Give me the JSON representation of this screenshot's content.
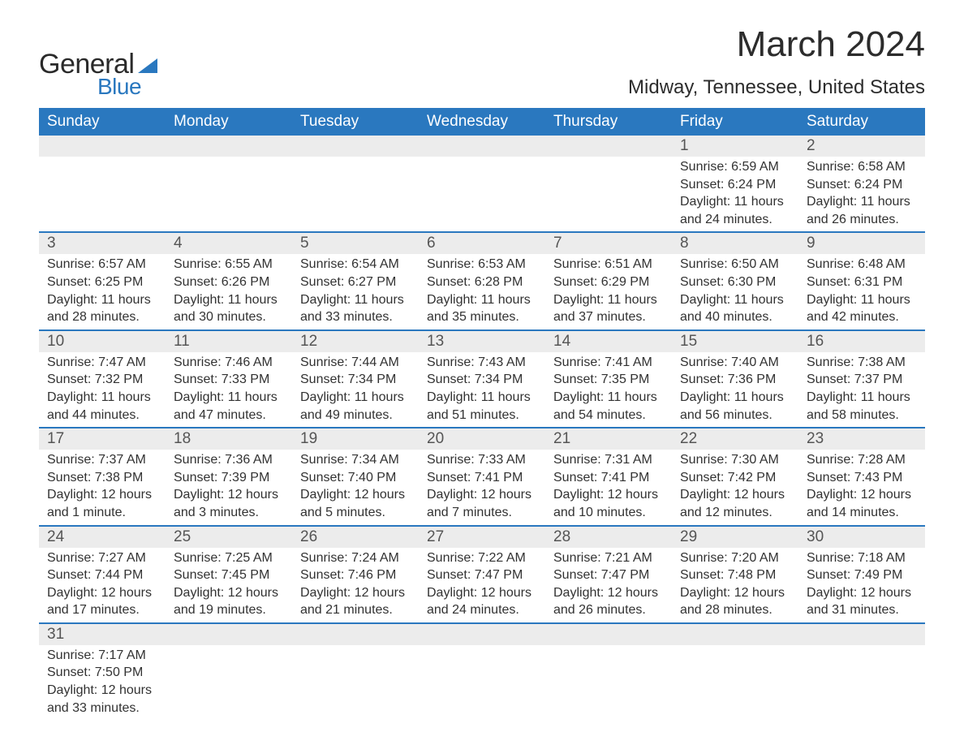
{
  "logo": {
    "text1": "General",
    "text2": "Blue",
    "text1_color": "#2a2a2a",
    "text2_color": "#2a78bf"
  },
  "title": "March 2024",
  "subtitle": "Midway, Tennessee, United States",
  "colors": {
    "header_bg": "#2a78bf",
    "header_text": "#ffffff",
    "daynum_bg": "#ececec",
    "daynum_text": "#555555",
    "body_text": "#323232",
    "row_border": "#2a78bf",
    "page_bg": "#ffffff"
  },
  "fonts": {
    "title_size": 44,
    "subtitle_size": 24,
    "header_size": 19,
    "daynum_size": 19,
    "detail_size": 16
  },
  "weekdays": [
    "Sunday",
    "Monday",
    "Tuesday",
    "Wednesday",
    "Thursday",
    "Friday",
    "Saturday"
  ],
  "weeks": [
    [
      null,
      null,
      null,
      null,
      null,
      {
        "n": "1",
        "sr": "Sunrise: 6:59 AM",
        "ss": "Sunset: 6:24 PM",
        "d1": "Daylight: 11 hours",
        "d2": "and 24 minutes."
      },
      {
        "n": "2",
        "sr": "Sunrise: 6:58 AM",
        "ss": "Sunset: 6:24 PM",
        "d1": "Daylight: 11 hours",
        "d2": "and 26 minutes."
      }
    ],
    [
      {
        "n": "3",
        "sr": "Sunrise: 6:57 AM",
        "ss": "Sunset: 6:25 PM",
        "d1": "Daylight: 11 hours",
        "d2": "and 28 minutes."
      },
      {
        "n": "4",
        "sr": "Sunrise: 6:55 AM",
        "ss": "Sunset: 6:26 PM",
        "d1": "Daylight: 11 hours",
        "d2": "and 30 minutes."
      },
      {
        "n": "5",
        "sr": "Sunrise: 6:54 AM",
        "ss": "Sunset: 6:27 PM",
        "d1": "Daylight: 11 hours",
        "d2": "and 33 minutes."
      },
      {
        "n": "6",
        "sr": "Sunrise: 6:53 AM",
        "ss": "Sunset: 6:28 PM",
        "d1": "Daylight: 11 hours",
        "d2": "and 35 minutes."
      },
      {
        "n": "7",
        "sr": "Sunrise: 6:51 AM",
        "ss": "Sunset: 6:29 PM",
        "d1": "Daylight: 11 hours",
        "d2": "and 37 minutes."
      },
      {
        "n": "8",
        "sr": "Sunrise: 6:50 AM",
        "ss": "Sunset: 6:30 PM",
        "d1": "Daylight: 11 hours",
        "d2": "and 40 minutes."
      },
      {
        "n": "9",
        "sr": "Sunrise: 6:48 AM",
        "ss": "Sunset: 6:31 PM",
        "d1": "Daylight: 11 hours",
        "d2": "and 42 minutes."
      }
    ],
    [
      {
        "n": "10",
        "sr": "Sunrise: 7:47 AM",
        "ss": "Sunset: 7:32 PM",
        "d1": "Daylight: 11 hours",
        "d2": "and 44 minutes."
      },
      {
        "n": "11",
        "sr": "Sunrise: 7:46 AM",
        "ss": "Sunset: 7:33 PM",
        "d1": "Daylight: 11 hours",
        "d2": "and 47 minutes."
      },
      {
        "n": "12",
        "sr": "Sunrise: 7:44 AM",
        "ss": "Sunset: 7:34 PM",
        "d1": "Daylight: 11 hours",
        "d2": "and 49 minutes."
      },
      {
        "n": "13",
        "sr": "Sunrise: 7:43 AM",
        "ss": "Sunset: 7:34 PM",
        "d1": "Daylight: 11 hours",
        "d2": "and 51 minutes."
      },
      {
        "n": "14",
        "sr": "Sunrise: 7:41 AM",
        "ss": "Sunset: 7:35 PM",
        "d1": "Daylight: 11 hours",
        "d2": "and 54 minutes."
      },
      {
        "n": "15",
        "sr": "Sunrise: 7:40 AM",
        "ss": "Sunset: 7:36 PM",
        "d1": "Daylight: 11 hours",
        "d2": "and 56 minutes."
      },
      {
        "n": "16",
        "sr": "Sunrise: 7:38 AM",
        "ss": "Sunset: 7:37 PM",
        "d1": "Daylight: 11 hours",
        "d2": "and 58 minutes."
      }
    ],
    [
      {
        "n": "17",
        "sr": "Sunrise: 7:37 AM",
        "ss": "Sunset: 7:38 PM",
        "d1": "Daylight: 12 hours",
        "d2": "and 1 minute."
      },
      {
        "n": "18",
        "sr": "Sunrise: 7:36 AM",
        "ss": "Sunset: 7:39 PM",
        "d1": "Daylight: 12 hours",
        "d2": "and 3 minutes."
      },
      {
        "n": "19",
        "sr": "Sunrise: 7:34 AM",
        "ss": "Sunset: 7:40 PM",
        "d1": "Daylight: 12 hours",
        "d2": "and 5 minutes."
      },
      {
        "n": "20",
        "sr": "Sunrise: 7:33 AM",
        "ss": "Sunset: 7:41 PM",
        "d1": "Daylight: 12 hours",
        "d2": "and 7 minutes."
      },
      {
        "n": "21",
        "sr": "Sunrise: 7:31 AM",
        "ss": "Sunset: 7:41 PM",
        "d1": "Daylight: 12 hours",
        "d2": "and 10 minutes."
      },
      {
        "n": "22",
        "sr": "Sunrise: 7:30 AM",
        "ss": "Sunset: 7:42 PM",
        "d1": "Daylight: 12 hours",
        "d2": "and 12 minutes."
      },
      {
        "n": "23",
        "sr": "Sunrise: 7:28 AM",
        "ss": "Sunset: 7:43 PM",
        "d1": "Daylight: 12 hours",
        "d2": "and 14 minutes."
      }
    ],
    [
      {
        "n": "24",
        "sr": "Sunrise: 7:27 AM",
        "ss": "Sunset: 7:44 PM",
        "d1": "Daylight: 12 hours",
        "d2": "and 17 minutes."
      },
      {
        "n": "25",
        "sr": "Sunrise: 7:25 AM",
        "ss": "Sunset: 7:45 PM",
        "d1": "Daylight: 12 hours",
        "d2": "and 19 minutes."
      },
      {
        "n": "26",
        "sr": "Sunrise: 7:24 AM",
        "ss": "Sunset: 7:46 PM",
        "d1": "Daylight: 12 hours",
        "d2": "and 21 minutes."
      },
      {
        "n": "27",
        "sr": "Sunrise: 7:22 AM",
        "ss": "Sunset: 7:47 PM",
        "d1": "Daylight: 12 hours",
        "d2": "and 24 minutes."
      },
      {
        "n": "28",
        "sr": "Sunrise: 7:21 AM",
        "ss": "Sunset: 7:47 PM",
        "d1": "Daylight: 12 hours",
        "d2": "and 26 minutes."
      },
      {
        "n": "29",
        "sr": "Sunrise: 7:20 AM",
        "ss": "Sunset: 7:48 PM",
        "d1": "Daylight: 12 hours",
        "d2": "and 28 minutes."
      },
      {
        "n": "30",
        "sr": "Sunrise: 7:18 AM",
        "ss": "Sunset: 7:49 PM",
        "d1": "Daylight: 12 hours",
        "d2": "and 31 minutes."
      }
    ],
    [
      {
        "n": "31",
        "sr": "Sunrise: 7:17 AM",
        "ss": "Sunset: 7:50 PM",
        "d1": "Daylight: 12 hours",
        "d2": "and 33 minutes."
      },
      null,
      null,
      null,
      null,
      null,
      null
    ]
  ]
}
